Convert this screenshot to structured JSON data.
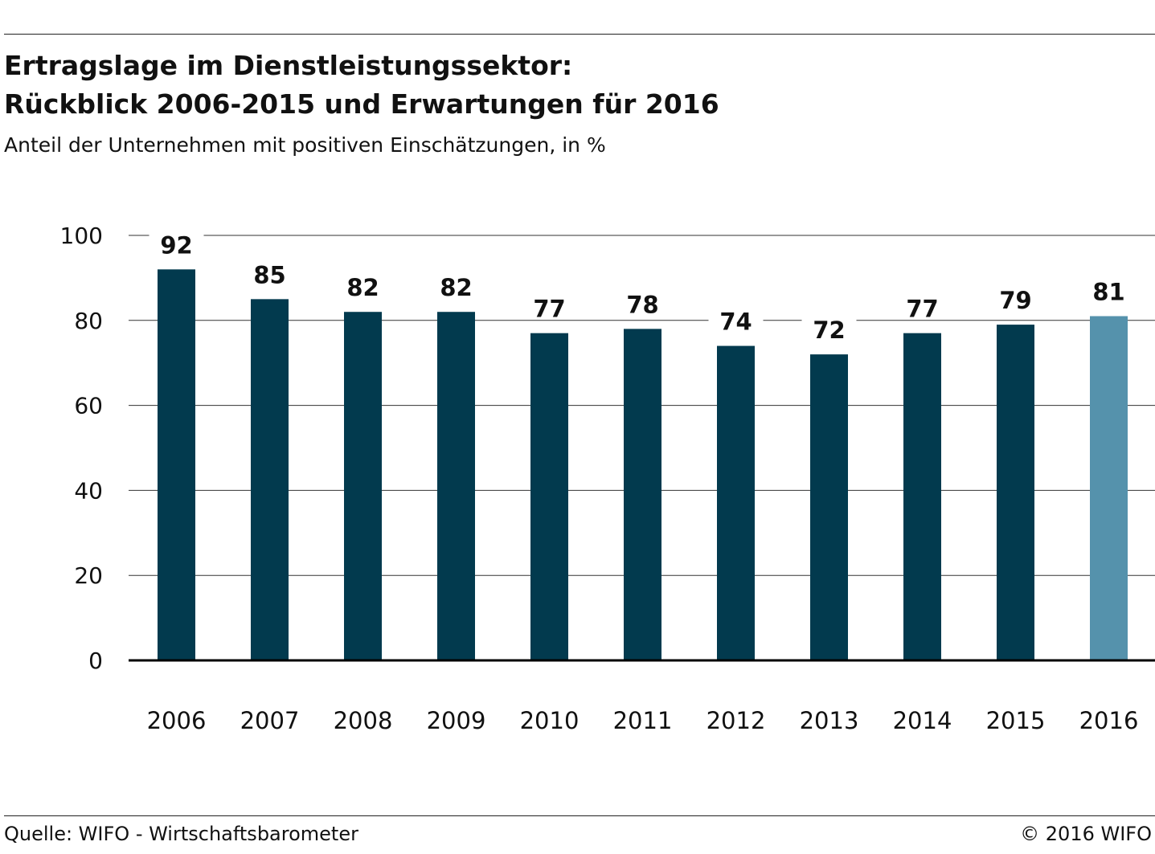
{
  "header": {
    "title_line1": "Ertragslage im Dienstleistungssektor:",
    "title_line2": "Rückblick 2006-2015 und Erwartungen für 2016",
    "subtitle": "Anteil der Unternehmen mit positiven Einschätzungen, in %"
  },
  "footer": {
    "source": "Quelle: WIFO - Wirtschaftsbarometer",
    "copyright": "© 2016 WIFO"
  },
  "colors": {
    "bar_primary": "#023a4e",
    "bar_highlight": "#5592ac",
    "grid": "#333333",
    "axis": "#000000"
  },
  "chart_data": {
    "type": "bar",
    "categories": [
      "2006",
      "2007",
      "2008",
      "2009",
      "2010",
      "2011",
      "2012",
      "2013",
      "2014",
      "2015",
      "2016"
    ],
    "values": [
      92,
      85,
      82,
      82,
      77,
      78,
      74,
      72,
      77,
      79,
      81
    ],
    "data_labels": [
      "92",
      "85",
      "82",
      "82",
      "77",
      "78",
      "74",
      "72",
      "77",
      "79",
      "81"
    ],
    "highlight_category": "2016",
    "ylim": [
      0,
      100
    ],
    "yticks": [
      0,
      20,
      40,
      60,
      80,
      100
    ],
    "ytick_labels": [
      "0",
      "20",
      "40",
      "60",
      "80",
      "100"
    ],
    "grid": true,
    "legend": "none",
    "title": "",
    "xlabel": "",
    "ylabel": ""
  }
}
